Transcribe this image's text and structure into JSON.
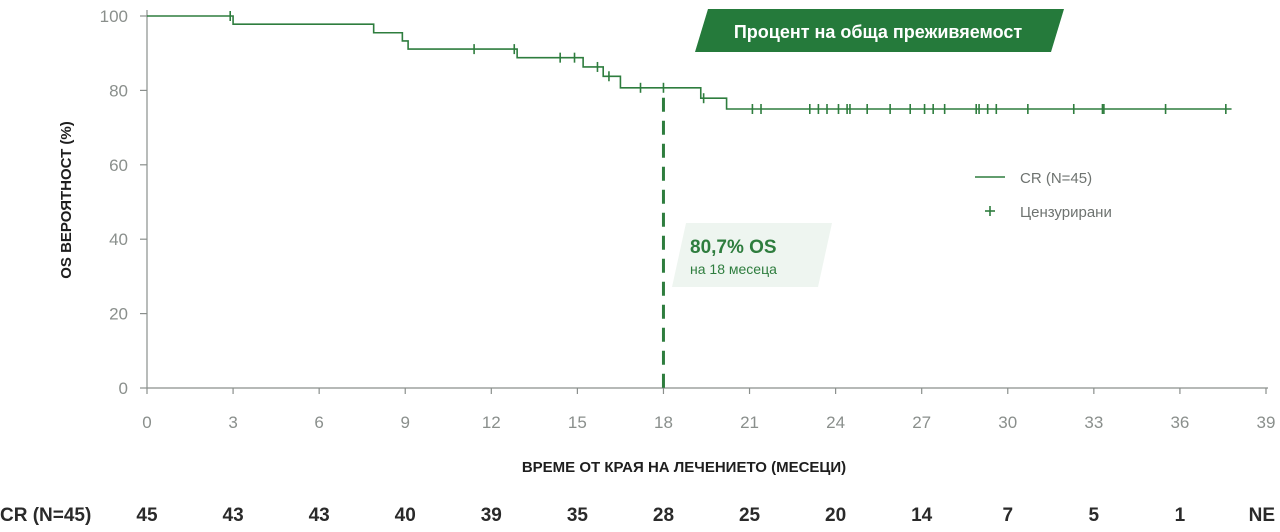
{
  "chart_data": {
    "type": "line",
    "title": "Процент на обща преживяемост",
    "xlabel": "ВРЕМЕ ОТ КРАЯ НА ЛЕЧЕНИЕТО (МЕСЕЦИ)",
    "ylabel": "OS ВЕРОЯТНОСТ (%)",
    "xlim": [
      0,
      39
    ],
    "ylim": [
      0,
      100
    ],
    "x_ticks": [
      0,
      3,
      6,
      9,
      12,
      15,
      18,
      21,
      24,
      27,
      30,
      33,
      36,
      39
    ],
    "y_ticks": [
      0,
      20,
      40,
      60,
      80,
      100
    ],
    "grid": false,
    "legend_position": "right",
    "series": [
      {
        "name": "CR (N=45)",
        "color": "#2e7d3e",
        "steps": [
          [
            0,
            100
          ],
          [
            3,
            97.8
          ],
          [
            7.9,
            95.5
          ],
          [
            8.9,
            93.3
          ],
          [
            9.1,
            91.1
          ],
          [
            12.9,
            88.8
          ],
          [
            15.2,
            86.3
          ],
          [
            15.9,
            83.8
          ],
          [
            16.5,
            80.7
          ],
          [
            19.3,
            77.9
          ],
          [
            20.2,
            75.0
          ],
          [
            37.8,
            75.0
          ]
        ],
        "censored": [
          2.9,
          11.4,
          12.8,
          14.4,
          14.9,
          15.7,
          16.1,
          17.2,
          18.0,
          19.4,
          21.1,
          21.4,
          23.1,
          23.4,
          23.7,
          24.1,
          24.4,
          24.5,
          25.1,
          25.9,
          26.6,
          27.1,
          27.4,
          27.8,
          28.9,
          29.0,
          29.3,
          29.6,
          30.7,
          32.3,
          33.3,
          33.35,
          35.5,
          37.6
        ]
      }
    ],
    "legend": {
      "series_label": "CR (N=45)",
      "censored_label": "Цензурирани"
    },
    "annotation": {
      "x": 18,
      "value_label": "80,7% OS",
      "sub_label": "на 18 месеца"
    },
    "risk_table": {
      "label": "CR (N=45)",
      "values": [
        "45",
        "43",
        "43",
        "40",
        "39",
        "35",
        "28",
        "25",
        "20",
        "14",
        "7",
        "5",
        "1",
        "NE"
      ]
    }
  }
}
